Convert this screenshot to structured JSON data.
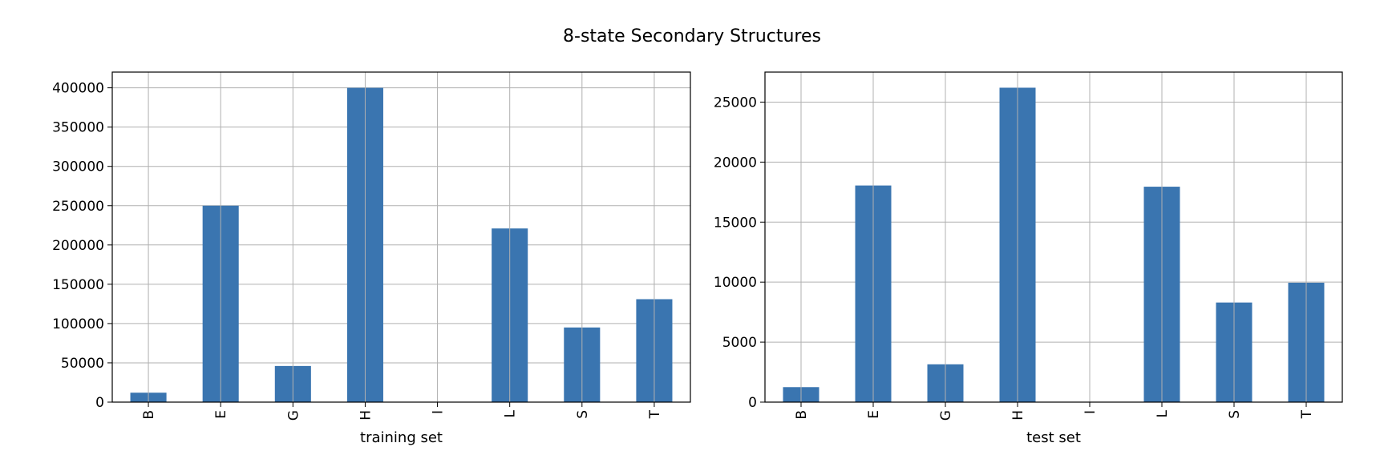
{
  "figure": {
    "suptitle": "8-state Secondary Structures",
    "bar_color": "#3a75b0",
    "grid_color": "#b0b0b0"
  },
  "chart_data": [
    {
      "type": "bar",
      "title": "",
      "categories": [
        "B",
        "E",
        "G",
        "H",
        "I",
        "L",
        "S",
        "T"
      ],
      "values": [
        12000,
        250000,
        46000,
        400000,
        250,
        221000,
        95000,
        131000
      ],
      "xlabel": "training set",
      "ylabel": "",
      "ylim": [
        0,
        420000
      ],
      "yticks": [
        0,
        50000,
        100000,
        150000,
        200000,
        250000,
        300000,
        350000,
        400000
      ],
      "grid": true
    },
    {
      "type": "bar",
      "title": "",
      "categories": [
        "B",
        "E",
        "G",
        "H",
        "I",
        "L",
        "S",
        "T"
      ],
      "values": [
        1250,
        18050,
        3150,
        26200,
        20,
        17950,
        8300,
        9950
      ],
      "xlabel": "test set",
      "ylabel": "",
      "ylim": [
        0,
        27500
      ],
      "yticks": [
        0,
        5000,
        10000,
        15000,
        20000,
        25000
      ],
      "grid": true
    }
  ]
}
